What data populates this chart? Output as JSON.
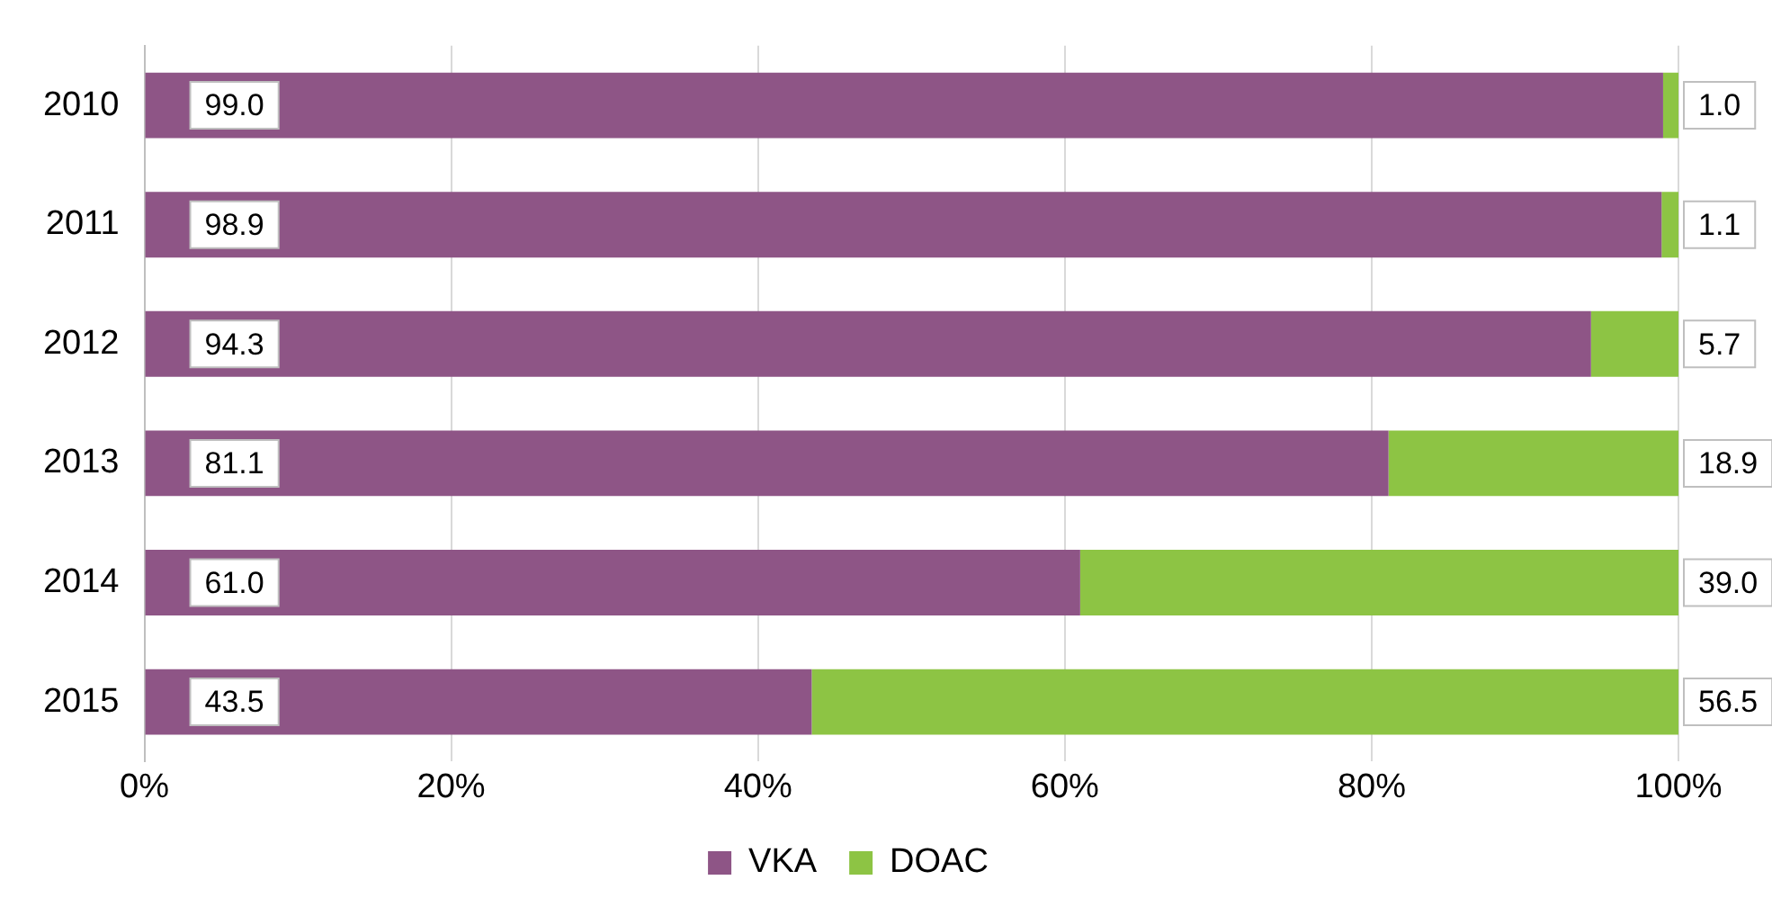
{
  "chart_data": {
    "type": "bar",
    "orientation": "horizontal",
    "stacked": true,
    "categories": [
      "2010",
      "2011",
      "2012",
      "2013",
      "2014",
      "2015"
    ],
    "series": [
      {
        "name": "VKA",
        "color": "#8e5586",
        "values": [
          99.0,
          98.9,
          94.3,
          81.1,
          61.0,
          43.5
        ],
        "value_labels": [
          "99.0",
          "98.9",
          "94.3",
          "81.1",
          "61.0",
          "43.5"
        ]
      },
      {
        "name": "DOAC",
        "color": "#8dc444",
        "values": [
          1.0,
          1.1,
          5.7,
          18.9,
          39.0,
          56.5
        ],
        "value_labels": [
          "1.0",
          "1.1",
          "5.7",
          "18.9",
          "39.0",
          "56.5"
        ]
      }
    ],
    "xlim": [
      0,
      100
    ],
    "xticks": [
      {
        "value": 0,
        "label": "0%"
      },
      {
        "value": 20,
        "label": "20%"
      },
      {
        "value": 40,
        "label": "40%"
      },
      {
        "value": 60,
        "label": "60%"
      },
      {
        "value": 80,
        "label": "80%"
      },
      {
        "value": 100,
        "label": "100%"
      }
    ],
    "grid": "x",
    "legend": "bottom"
  }
}
